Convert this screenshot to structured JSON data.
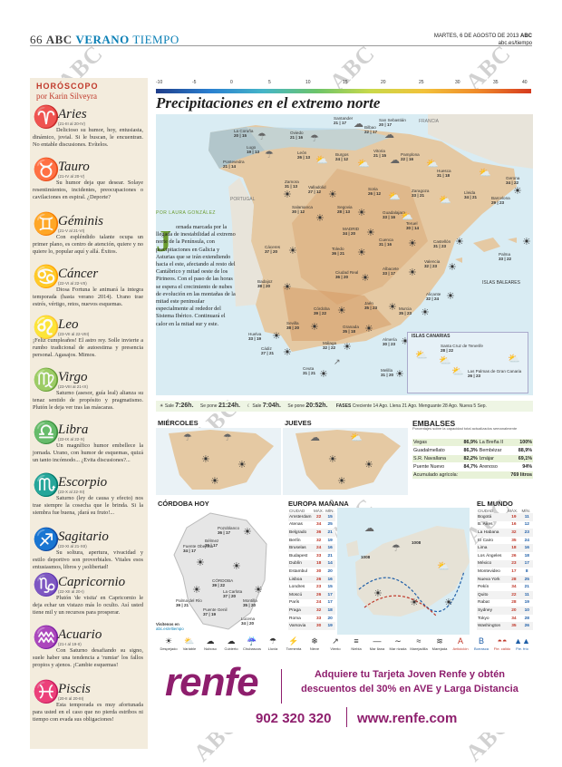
{
  "header": {
    "page_number": "66",
    "brand": "ABC",
    "section_main": "VERANO",
    "section_sub": "TIEMPO",
    "date_line": "MARTES, 6 DE AGOSTO DE 2013",
    "brand_right": "ABC",
    "site": "abc.es/tiempo"
  },
  "horoscope": {
    "title": "HORÓSCOPO",
    "author": "por Karin Silveyra",
    "signs": [
      {
        "symbol": "♈",
        "name": "Aries",
        "dates": "(21-III al 20-IV)",
        "text": "Delicioso su humor, hoy, entusiasta, dinámico, jovial. Si le buscan, le encuentran. No entable discusiones. Evítelos."
      },
      {
        "symbol": "♉",
        "name": "Tauro",
        "dates": "(21-IV al 20-V)",
        "text": "Su humor deja que desear. Solaye resentimientos, incidentes, preocupaciones o cavilaciones en espiral. ¿Deporte?"
      },
      {
        "symbol": "♊",
        "name": "Géminis",
        "dates": "(21-V al 21-VI)",
        "text": "Con espléndido talante ocupa un primer plano, es centro de atención, quiere y no quiere lo, popular aquí y allá. Éxitos."
      },
      {
        "symbol": "♋",
        "name": "Cáncer",
        "dates": "(22-VI al 22-VII)",
        "text": "Diosa Fortuna le animará la integra temporada (hasta verano 2014). Urano trae estrés, vértigo, retos, nuevos esquemas."
      },
      {
        "symbol": "♌",
        "name": "Leo",
        "dates": "(23-VII al 22-VIII)",
        "text": "¡Feliz cumpleaños! El astro rey. Solle invierte a rumbo tradicional de autoestima y presencia personal. Agasajos. Mimos."
      },
      {
        "symbol": "♍",
        "name": "Virgo",
        "dates": "(23-VIII al 21-IX)",
        "text": "Saturno (asesor, guía leal) alianza su tenaz sentido de propósito y pragmatismo. Plutón le deja ver tras las máscaras."
      },
      {
        "symbol": "♎",
        "name": "Libra",
        "dates": "(22-IX al 22-X)",
        "text": "Un magnífico humor embellece la jornada. Urano, con humor de esquemas, quizá un tanto incómodo... ¿Evita discusiones?..."
      },
      {
        "symbol": "♏",
        "name": "Escorpio",
        "dates": "(23-X al 22-XI)",
        "text": "Saturno (ley de causa y efecto) nos trae siempre la cosecha que le brinda. Si la siembra fue buena, ¡dará su fruto!..."
      },
      {
        "symbol": "♐",
        "name": "Sagitario",
        "dates": "(23-XI al 21-XII)",
        "text": "Su soltura, apertura, vivacidad y estilo deportivo son proverbiales. Vitales esos entusiasmos, libros y ¡solibertad!"
      },
      {
        "symbol": "♑",
        "name": "Capricornio",
        "dates": "(22-XII al 20-I)",
        "text": "Plutón 'de visita' en Capricornio le deja echar un vistazo más lo oculto. Así usted tiene mil y un recursos para prosperar."
      },
      {
        "symbol": "♒",
        "name": "Acuario",
        "dates": "(21-I al 19-II)",
        "text": "Con Saturno desafiando su signo, suele haber una tendencia a 'rumiar' los fallos propios y ajenos. ¡Cambie esquemas!"
      },
      {
        "symbol": "♓",
        "name": "Piscis",
        "dates": "(20-II al 20-III)",
        "text": "Esta temporada es muy afortunada para usted en el caso que no pierda estribos ni tiempo con evada sus obligaciones!"
      }
    ]
  },
  "main": {
    "scale_labels": [
      "-10",
      "-5",
      "0",
      "5",
      "10",
      "15",
      "20",
      "25",
      "30",
      "35",
      "40"
    ],
    "title": "Precipitaciones en el extremo norte",
    "byline": "POR LAURA GONZÁLEZ",
    "lead_text": "ornada marcada por la llegada de inestabilidad al extremo norte de la Península, con precipitaciones en Galicia y Asturias que se irán extendiendo hacia el este, afectando al resto del Cantábrico y mitad oeste de los Pirineos. Con el paso de las horas se espera el crecimiento de nubes de evolución en las montañas de la mitad este peninsular especialmente al rededor del Sistema Ibérico. Continuará el calor en la mitad sur y este.",
    "lead_initial": "J",
    "map_labels": {
      "portugal": "PORTUGAL",
      "francia": "FRANCIA",
      "baleares": "ISLAS BALEARES",
      "canarias": "ISLAS CANARIAS"
    },
    "cities": [
      {
        "name": "La Coruña",
        "temps": "20 | 15"
      },
      {
        "name": "Oviedo",
        "temps": "21 | 16"
      },
      {
        "name": "Santander",
        "temps": "21 | 17"
      },
      {
        "name": "Bilbao",
        "temps": "22 | 17"
      },
      {
        "name": "San Sebastián",
        "temps": "20 | 17"
      },
      {
        "name": "Lugo",
        "temps": "19 | 13"
      },
      {
        "name": "Pontevedra",
        "temps": "21 | 14"
      },
      {
        "name": "León",
        "temps": "26 | 13"
      },
      {
        "name": "Burgos",
        "temps": "24 | 12"
      },
      {
        "name": "Vitoria",
        "temps": "21 | 15"
      },
      {
        "name": "Pamplona",
        "temps": "22 | 16"
      },
      {
        "name": "Huesca",
        "temps": "31 | 18"
      },
      {
        "name": "Gerona",
        "temps": "34 | 22"
      },
      {
        "name": "Barcelona",
        "temps": "29 | 23"
      },
      {
        "name": "Lleida",
        "temps": "34 | 21"
      },
      {
        "name": "Zaragoza",
        "temps": "33 | 21"
      },
      {
        "name": "Soria",
        "temps": "26 | 12"
      },
      {
        "name": "Valladolid",
        "temps": "27 | 12"
      },
      {
        "name": "Zamora",
        "temps": "31 | 13"
      },
      {
        "name": "Salamanca",
        "temps": "30 | 12"
      },
      {
        "name": "Segovia",
        "temps": "28 | 13"
      },
      {
        "name": "MADRID",
        "temps": "34 | 20"
      },
      {
        "name": "Guadalajara",
        "temps": "33 | 16"
      },
      {
        "name": "Teruel",
        "temps": "30 | 14"
      },
      {
        "name": "Castellón",
        "temps": "31 | 23"
      },
      {
        "name": "Valencia",
        "temps": "32 | 23"
      },
      {
        "name": "Cáceres",
        "temps": "37 | 20"
      },
      {
        "name": "Toledo",
        "temps": "36 | 21"
      },
      {
        "name": "Cuenca",
        "temps": "31 | 16"
      },
      {
        "name": "Badajoz",
        "temps": "38 | 20"
      },
      {
        "name": "Ciudad Real",
        "temps": "36 | 20"
      },
      {
        "name": "Albacete",
        "temps": "33 | 17"
      },
      {
        "name": "Alicante",
        "temps": "32 | 24"
      },
      {
        "name": "Palma",
        "temps": "33 | 22"
      },
      {
        "name": "Córdoba",
        "temps": "39 | 22"
      },
      {
        "name": "Jaén",
        "temps": "35 | 23"
      },
      {
        "name": "Murcia",
        "temps": "35 | 23"
      },
      {
        "name": "Sevilla",
        "temps": "38 | 20"
      },
      {
        "name": "Granada",
        "temps": "35 | 18"
      },
      {
        "name": "Huelva",
        "temps": "33 | 19"
      },
      {
        "name": "Almería",
        "temps": "30 | 23"
      },
      {
        "name": "Cádiz",
        "temps": "27 | 21"
      },
      {
        "name": "Málaga",
        "temps": "32 | 22"
      },
      {
        "name": "Ceuta",
        "temps": "31 | 21"
      },
      {
        "name": "Melilla",
        "temps": "31 | 20"
      },
      {
        "name": "Santa Cruz de Tenerife",
        "temps": "28 | 22"
      },
      {
        "name": "Las Palmas de Gran Canaria",
        "temps": "26 | 23"
      }
    ]
  },
  "sunbar": {
    "sale_label": "Sale",
    "sale": "7:26h.",
    "pone_label": "Se pone",
    "pone": "21:24h.",
    "luna_sale": "7:04h.",
    "luna_pone": "20:52h.",
    "fases": "FASES",
    "creciente": "Creciente 14 Ago.",
    "llena": "Llena 21 Ago.",
    "menguante": "Menguante 28 Ago.",
    "nueva": "Nueva 5 Sep."
  },
  "forecast": {
    "miercoles": "MIÉRCOLES",
    "jueves": "JUEVES",
    "cordoba_hoy": "CÓRDOBA HOY",
    "europa": "EUROPA MAÑANA",
    "mundo": "EL MUNDO"
  },
  "embalses": {
    "title": "EMBALSES",
    "subtitle": "Porcentajes sobre la capacidad total actualizados semanalmente",
    "rows": [
      {
        "name": "Vegas",
        "v": "86,9%",
        "name2": "La Breña II",
        "v2": "100%"
      },
      {
        "name": "Guadalmellato",
        "v": "86,3%",
        "name2": "Bembézar",
        "v2": "88,9%"
      },
      {
        "name": "S.R. Navallana",
        "v": "82,2%",
        "name2": "Iznájar",
        "v2": "69,1%"
      },
      {
        "name": "Puente Nuevo",
        "v": "84,7%",
        "name2": "Arenoso",
        "v2": "94%"
      }
    ],
    "acumulado_label": "Acumulado agrícola:",
    "acumulado": "769 litros"
  },
  "europa_table": {
    "headers": [
      "CIUDAD",
      "MÁX.",
      "MÍN."
    ],
    "rows": [
      [
        "Amsterdam",
        "22",
        "15"
      ],
      [
        "Atenas",
        "34",
        "25"
      ],
      [
        "Belgrado",
        "36",
        "21"
      ],
      [
        "Berlín",
        "32",
        "19"
      ],
      [
        "Bruselas",
        "24",
        "16"
      ],
      [
        "Budapest",
        "33",
        "21"
      ],
      [
        "Dublín",
        "18",
        "14"
      ],
      [
        "Estambul",
        "30",
        "20"
      ],
      [
        "Lisboa",
        "26",
        "16"
      ],
      [
        "Londres",
        "23",
        "15"
      ],
      [
        "Moscú",
        "26",
        "17"
      ],
      [
        "París",
        "24",
        "17"
      ],
      [
        "Praga",
        "32",
        "18"
      ],
      [
        "Roma",
        "33",
        "20"
      ],
      [
        "Varsovia",
        "30",
        "19"
      ]
    ]
  },
  "mundo_table": {
    "headers": [
      "CIUDAD",
      "MÁX.",
      "MÍN."
    ],
    "rows": [
      [
        "Bogotá",
        "19",
        "11"
      ],
      [
        "B. Aires",
        "16",
        "12"
      ],
      [
        "La Habana",
        "32",
        "23"
      ],
      [
        "El Cairo",
        "35",
        "24"
      ],
      [
        "Lima",
        "18",
        "16"
      ],
      [
        "Los Ángeles",
        "26",
        "18"
      ],
      [
        "México",
        "23",
        "17"
      ],
      [
        "Montevideo",
        "17",
        "8"
      ],
      [
        "Nueva York",
        "28",
        "25"
      ],
      [
        "Pekín",
        "34",
        "21"
      ],
      [
        "Quito",
        "22",
        "11"
      ],
      [
        "Rabat",
        "28",
        "19"
      ],
      [
        "Sydney",
        "20",
        "10"
      ],
      [
        "Tokyo",
        "34",
        "28"
      ],
      [
        "Washington",
        "35",
        "26"
      ]
    ]
  },
  "cordoba_cities": [
    {
      "name": "Pozoblanco",
      "temps": "36 | 17"
    },
    {
      "name": "Fuente Obejuna",
      "temps": "34 | 17"
    },
    {
      "name": "Bélmez",
      "temps": "36 | 17"
    },
    {
      "name": "CÓRDOBA",
      "temps": "39 | 22"
    },
    {
      "name": "La Carlota",
      "temps": "37 | 20"
    },
    {
      "name": "Palma del Río",
      "temps": "39 | 21"
    },
    {
      "name": "Montilla",
      "temps": "35 | 20"
    },
    {
      "name": "Puente Genil",
      "temps": "37 | 19"
    },
    {
      "name": "Lucena",
      "temps": "34 | 20"
    }
  ],
  "visitors": {
    "label": "Visítenos en",
    "url": "abc.es/eltiempo"
  },
  "legend": [
    "Despejado",
    "Variable",
    "Nuboso",
    "Cubierto",
    "Chubascos",
    "Lluvia",
    "Tormenta",
    "Nieve",
    "Viento",
    "Niebla",
    "Mar llana",
    "Mar rizada",
    "Marejadilla",
    "Marejada",
    "Anticiclón",
    "Borrasca",
    "Fte. cálido",
    "Fte. frío"
  ],
  "ad": {
    "logo": "renfe",
    "line1": "Adquiere tu Tarjeta Joven Renfe y obtén",
    "line2": "descuentos del 30% en AVE y Larga Distancia",
    "phone": "902 320 320",
    "url": "www.renfe.com"
  },
  "watermark": "ABC",
  "colors": {
    "accent": "#0a7fb5",
    "horoscope": "#c0392b",
    "renfe": "#8e1e6d",
    "lead_green": "#6a9b2f"
  }
}
